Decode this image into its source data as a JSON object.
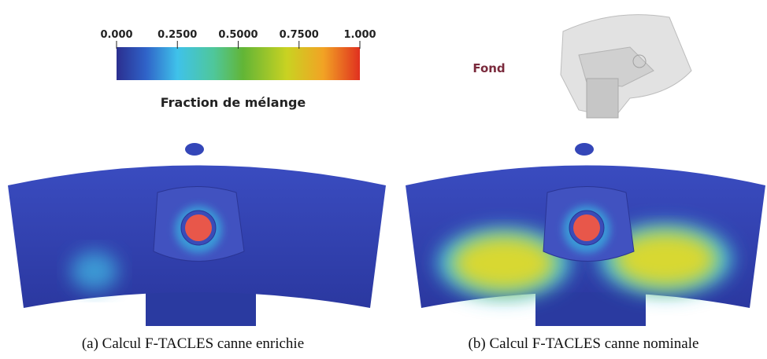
{
  "colorbar": {
    "lim": [
      0,
      1
    ],
    "ticks": [
      {
        "value": 0,
        "label": "0.000"
      },
      {
        "value": 0.25,
        "label": "0.2500"
      },
      {
        "value": 0.5,
        "label": "0.5000"
      },
      {
        "value": 0.75,
        "label": "0.7500"
      },
      {
        "value": 1,
        "label": "1.000"
      }
    ],
    "label": "Fraction de mélange"
  },
  "view_label": "Fond",
  "captions": [
    "(a) Calcul F-TACLES canne enrichie",
    "(b) Calcul F-TACLES canne nominale"
  ]
}
